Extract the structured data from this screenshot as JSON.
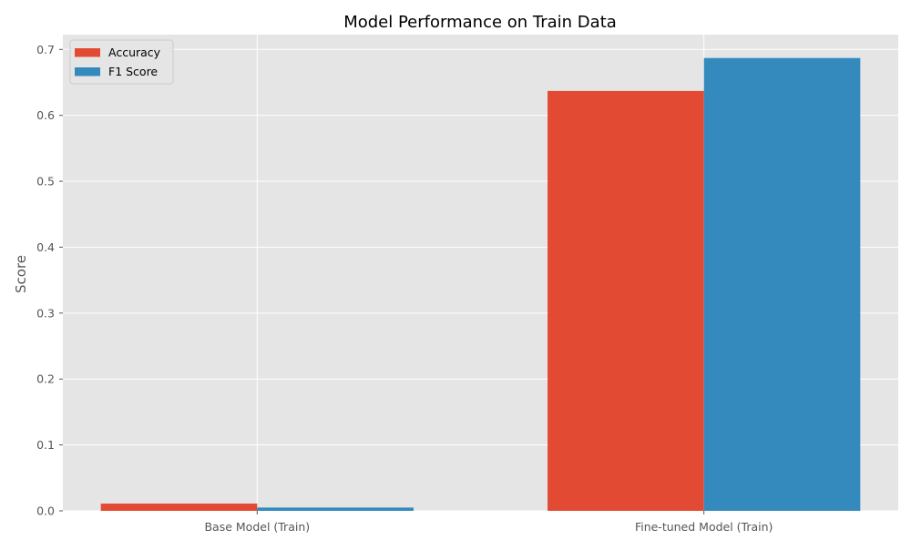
{
  "chart_data": {
    "type": "bar",
    "title": "Model Performance on Train Data",
    "xlabel": "",
    "ylabel": "Score",
    "categories": [
      "Base Model (Train)",
      "Fine-tuned Model (Train)"
    ],
    "series": [
      {
        "name": "Accuracy",
        "values": [
          0.011,
          0.637
        ],
        "color": "#E24A33"
      },
      {
        "name": "F1 Score",
        "values": [
          0.005,
          0.687
        ],
        "color": "#348ABD"
      }
    ],
    "ylim": [
      0,
      0.7225
    ],
    "yticks": [
      0.0,
      0.1,
      0.2,
      0.3,
      0.4,
      0.5,
      0.6,
      0.7
    ],
    "ytick_labels": [
      "0.0",
      "0.1",
      "0.2",
      "0.3",
      "0.4",
      "0.5",
      "0.6",
      "0.7"
    ],
    "grid": true,
    "legend_position": "top-left",
    "style": {
      "plot_background": "#E5E5E5",
      "grid_color": "#FFFFFF",
      "tick_label_color": "#555555",
      "title_color": "#000000"
    }
  }
}
